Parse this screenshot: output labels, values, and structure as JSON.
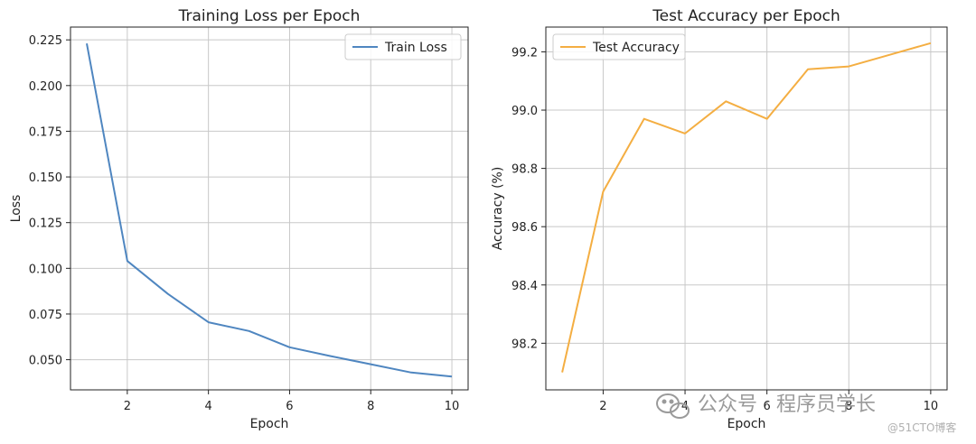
{
  "chart_data": [
    {
      "type": "line",
      "title": "Training Loss per Epoch",
      "xlabel": "Epoch",
      "ylabel": "Loss",
      "xlim": [
        0.6,
        10.4
      ],
      "ylim": [
        0.0335,
        0.232
      ],
      "xticks": [
        2,
        4,
        6,
        8,
        10
      ],
      "yticks": [
        0.05,
        0.075,
        0.1,
        0.125,
        0.15,
        0.175,
        0.2,
        0.225
      ],
      "ytick_labels": [
        "0.050",
        "0.075",
        "0.100",
        "0.125",
        "0.150",
        "0.175",
        "0.200",
        "0.225"
      ],
      "grid": true,
      "legend_position": "top-right",
      "series": [
        {
          "name": "Train Loss",
          "color": "#4f86c0",
          "x": [
            1,
            2,
            3,
            4,
            5,
            6,
            7,
            8,
            9,
            10
          ],
          "values": [
            0.223,
            0.104,
            0.086,
            0.0705,
            0.0657,
            0.0568,
            0.052,
            0.0475,
            0.043,
            0.0408
          ]
        }
      ]
    },
    {
      "type": "line",
      "title": "Test Accuracy per Epoch",
      "xlabel": "Epoch",
      "ylabel": "Accuracy (%)",
      "xlim": [
        0.6,
        10.4
      ],
      "ylim": [
        98.04,
        99.285
      ],
      "xticks": [
        2,
        4,
        6,
        8,
        10
      ],
      "yticks": [
        98.2,
        98.4,
        98.6,
        98.8,
        99.0,
        99.2
      ],
      "ytick_labels": [
        "98.2",
        "98.4",
        "98.6",
        "98.8",
        "99.0",
        "99.2"
      ],
      "grid": true,
      "legend_position": "top-left",
      "series": [
        {
          "name": "Test Accuracy",
          "color": "#f4ae42",
          "x": [
            1,
            2,
            3,
            4,
            5,
            6,
            7,
            8,
            9,
            10
          ],
          "values": [
            98.1,
            98.72,
            98.97,
            98.92,
            99.03,
            98.97,
            99.14,
            99.15,
            99.19,
            99.23
          ]
        }
      ]
    }
  ],
  "watermark": {
    "main": "公众号 · 程序员学长",
    "credit": "@51CTO博客"
  }
}
